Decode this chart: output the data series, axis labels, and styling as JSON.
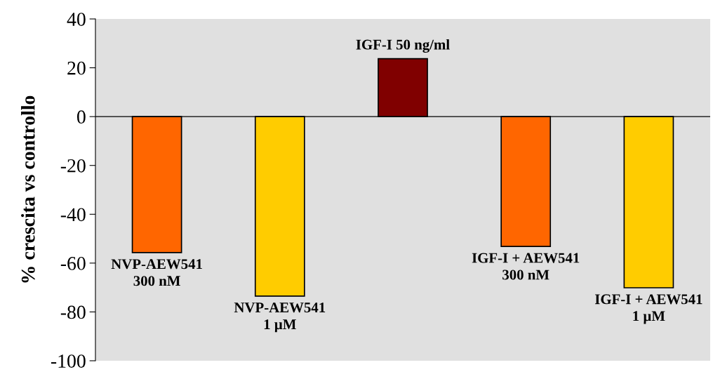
{
  "chart_data": {
    "type": "bar",
    "ylabel": "% crescita vs controllo",
    "categories": [
      "NVP-AEW541\n300 nM",
      "NVP-AEW541\n1 µM",
      "IGF-I 50 ng/ml",
      "IGF-I + AEW541\n300 nM",
      "IGF-I + AEW541\n1 µM"
    ],
    "values": [
      -55.7,
      -73.5,
      23.7,
      -53.2,
      -70.1
    ],
    "colors": [
      "#ff6600",
      "#ffcc00",
      "#800000",
      "#ff6600",
      "#ffcc00"
    ],
    "ylim": [
      -100,
      40
    ],
    "yticks": [
      -100,
      -80,
      -60,
      -40,
      -20,
      0,
      20,
      40
    ],
    "grid": false,
    "ref_lines": [
      {
        "axis": "y",
        "value": 0,
        "color": "#000000",
        "line_style": "solid"
      }
    ]
  }
}
